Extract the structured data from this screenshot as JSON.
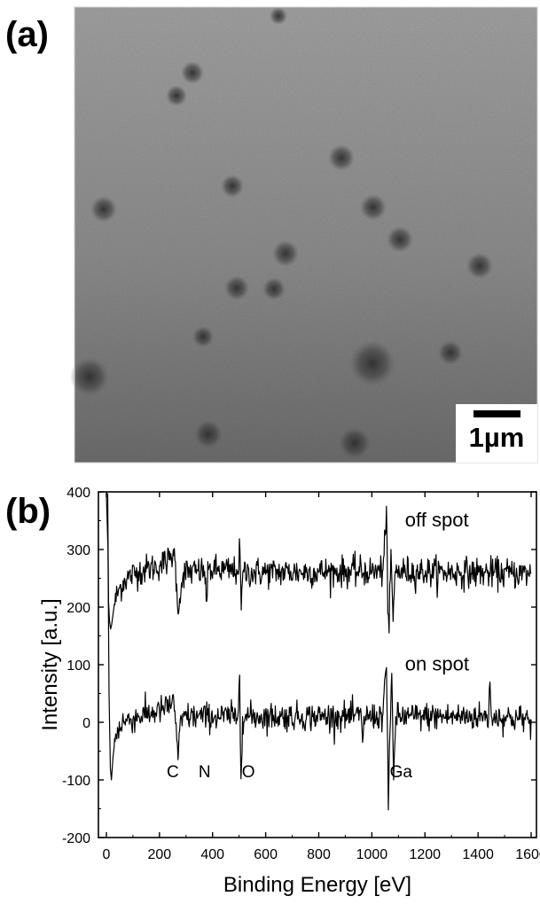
{
  "panel_a": {
    "label": "(a)",
    "scale_bar_label": "1µm",
    "colors": {
      "background": "#8a8a8a",
      "spot": "#2e2e2e"
    }
  },
  "chart_data": [
    {
      "type": "line",
      "panel_label": "(b)",
      "title": "",
      "xlabel": "Binding Energy [eV]",
      "ylabel": "Intensity [a.u.]",
      "xlim": [
        -30,
        1620
      ],
      "ylim": [
        -200,
        400
      ],
      "xticks": [
        0,
        200,
        400,
        600,
        800,
        1000,
        1200,
        1400,
        1600
      ],
      "yticks": [
        -200,
        -100,
        0,
        100,
        200,
        300,
        400
      ],
      "grid": false,
      "legend": "none",
      "series_color": "#000000",
      "series": [
        {
          "name": "off spot",
          "baseline": 262,
          "noise": 13,
          "points": [
            [
              0,
              400
            ],
            [
              5,
              395
            ],
            [
              8,
              210
            ],
            [
              12,
              175
            ],
            [
              16,
              162
            ],
            [
              20,
              170
            ],
            [
              30,
              205
            ],
            [
              45,
              228
            ],
            [
              70,
              248
            ],
            [
              120,
              262
            ],
            [
              200,
              272
            ],
            [
              245,
              285
            ],
            [
              252,
              300
            ],
            [
              258,
              282
            ],
            [
              265,
              240
            ],
            [
              270,
              188
            ],
            [
              276,
              215
            ],
            [
              290,
              260
            ],
            [
              370,
              262
            ],
            [
              378,
              210
            ],
            [
              384,
              265
            ],
            [
              495,
              262
            ],
            [
              503,
              300
            ],
            [
              508,
              195
            ],
            [
              514,
              260
            ],
            [
              1040,
              262
            ],
            [
              1050,
              325
            ],
            [
              1055,
              375
            ],
            [
              1060,
              190
            ],
            [
              1065,
              155
            ],
            [
              1072,
              300
            ],
            [
              1080,
              175
            ],
            [
              1088,
              262
            ],
            [
              1600,
              258
            ]
          ]
        },
        {
          "name": "on spot",
          "baseline": 10,
          "noise": 12,
          "points": [
            [
              0,
              395
            ],
            [
              6,
              300
            ],
            [
              10,
              50
            ],
            [
              15,
              -80
            ],
            [
              19,
              -100
            ],
            [
              25,
              -60
            ],
            [
              35,
              -20
            ],
            [
              60,
              0
            ],
            [
              120,
              10
            ],
            [
              200,
              20
            ],
            [
              245,
              30
            ],
            [
              252,
              48
            ],
            [
              258,
              20
            ],
            [
              265,
              -30
            ],
            [
              270,
              -65
            ],
            [
              276,
              -15
            ],
            [
              290,
              10
            ],
            [
              495,
              10
            ],
            [
              502,
              82
            ],
            [
              507,
              -98
            ],
            [
              513,
              10
            ],
            [
              960,
              10
            ],
            [
              965,
              -35
            ],
            [
              970,
              10
            ],
            [
              1040,
              10
            ],
            [
              1050,
              80
            ],
            [
              1055,
              95
            ],
            [
              1062,
              -152
            ],
            [
              1068,
              -20
            ],
            [
              1075,
              85
            ],
            [
              1082,
              -100
            ],
            [
              1090,
              10
            ],
            [
              1440,
              10
            ],
            [
              1445,
              70
            ],
            [
              1450,
              10
            ],
            [
              1600,
              5
            ]
          ]
        }
      ],
      "series_labels": [
        "off spot",
        "on spot"
      ],
      "annotations": [
        {
          "text": "C",
          "x": 250,
          "y": -95
        },
        {
          "text": "N",
          "x": 370,
          "y": -95
        },
        {
          "text": "O",
          "x": 535,
          "y": -95
        },
        {
          "text": "Ga",
          "x": 1110,
          "y": -95
        }
      ]
    }
  ]
}
